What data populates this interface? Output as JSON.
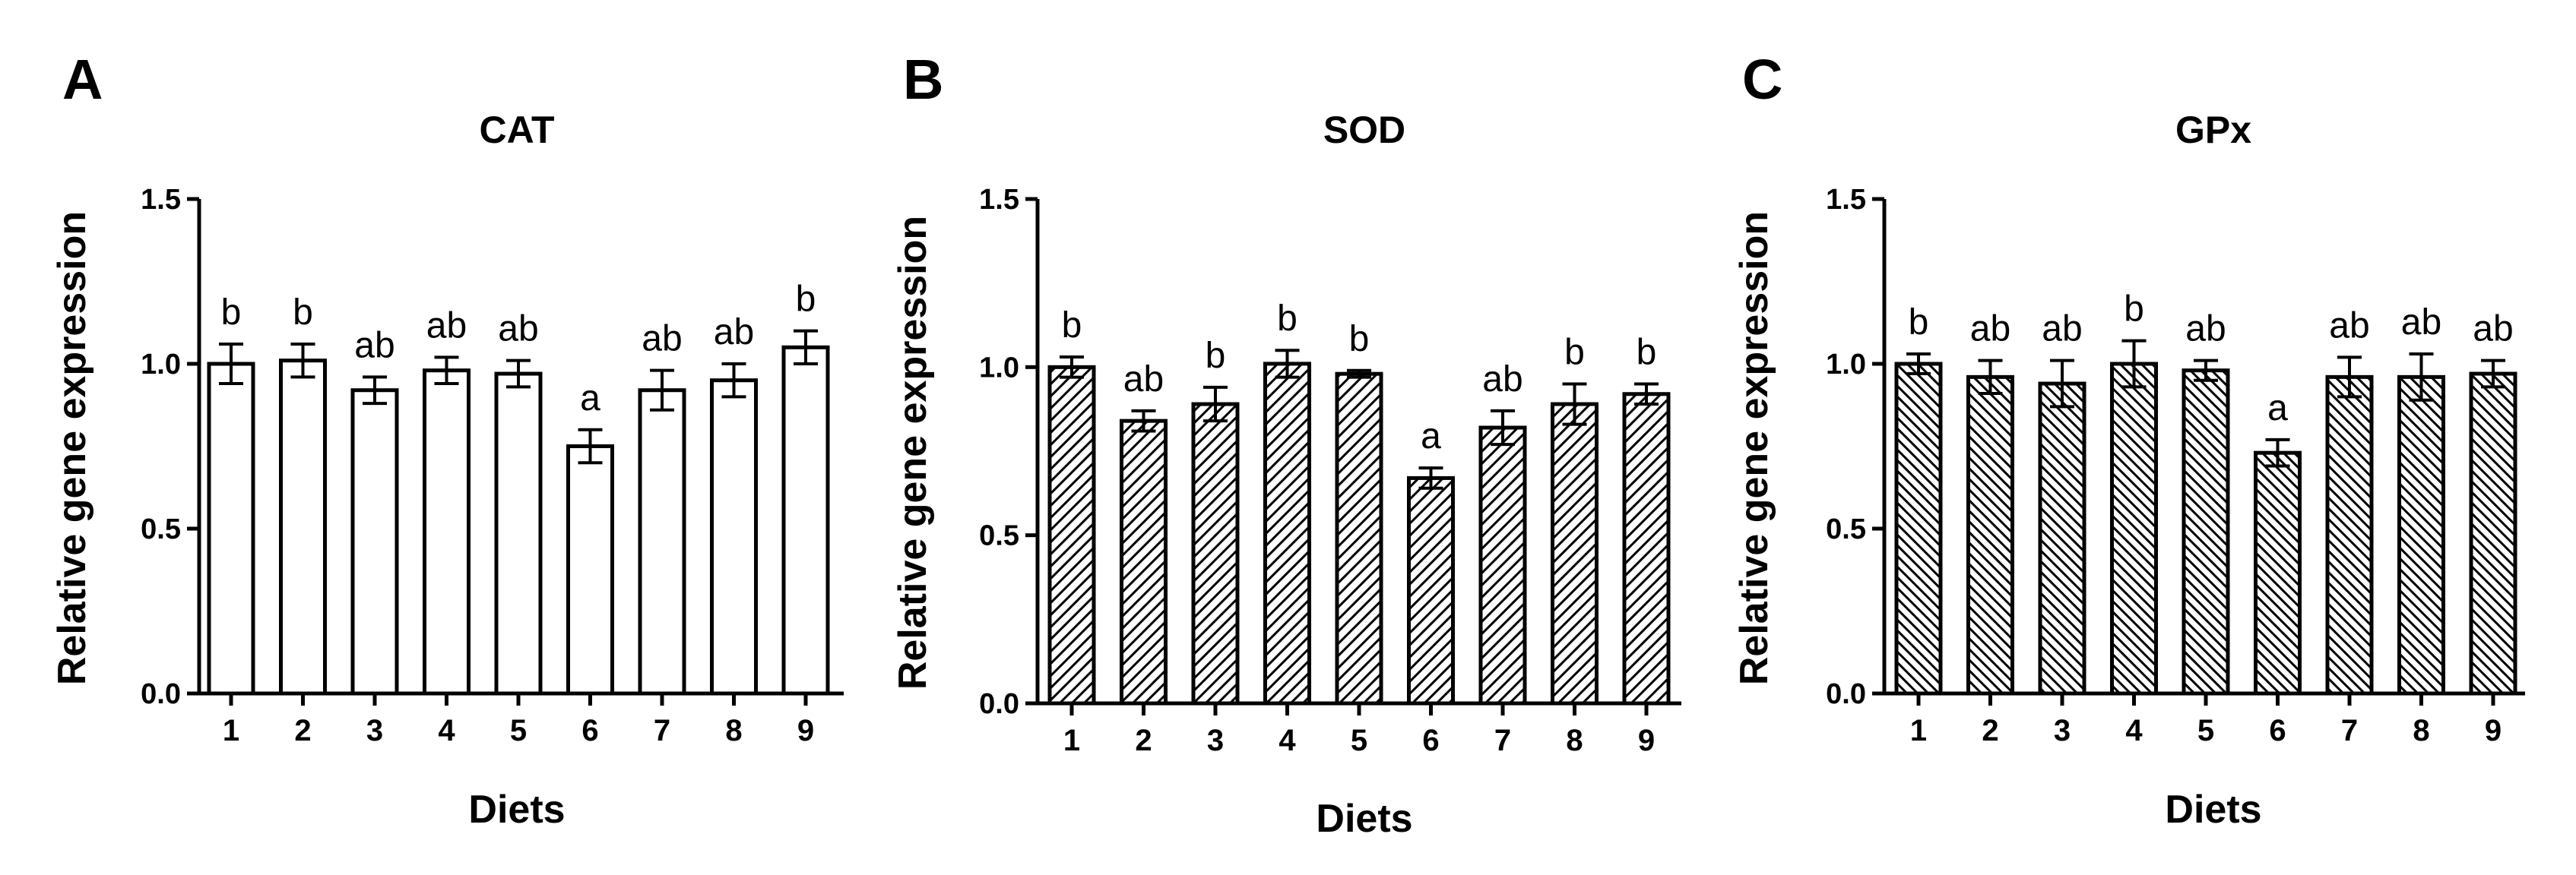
{
  "colors": {
    "ink": "#000000",
    "bar_fill": "#ffffff"
  },
  "chart_data": [
    {
      "type": "bar",
      "panel_label": "A",
      "title": "CAT",
      "xlabel": "Diets",
      "ylabel": "Relative gene expression",
      "ylim": [
        0,
        1.5
      ],
      "yticks": [
        "0.0",
        "0.5",
        "1.0",
        "1.5"
      ],
      "categories": [
        "1",
        "2",
        "3",
        "4",
        "5",
        "6",
        "7",
        "8",
        "9"
      ],
      "values": [
        1.0,
        1.01,
        0.92,
        0.98,
        0.97,
        0.75,
        0.92,
        0.95,
        1.05
      ],
      "errors": [
        0.06,
        0.05,
        0.04,
        0.04,
        0.04,
        0.05,
        0.06,
        0.05,
        0.05
      ],
      "significance_labels": [
        "b",
        "b",
        "ab",
        "ab",
        "ab",
        "a",
        "ab",
        "ab",
        "b"
      ],
      "bar_pattern": "open",
      "grid": false,
      "legend": "none"
    },
    {
      "type": "bar",
      "panel_label": "B",
      "title": "SOD",
      "xlabel": "Diets",
      "ylabel": "Relative gene expression",
      "ylim": [
        0,
        1.5
      ],
      "yticks": [
        "0.0",
        "0.5",
        "1.0",
        "1.5"
      ],
      "categories": [
        "1",
        "2",
        "3",
        "4",
        "5",
        "6",
        "7",
        "8",
        "9"
      ],
      "values": [
        1.0,
        0.84,
        0.89,
        1.01,
        0.98,
        0.67,
        0.82,
        0.89,
        0.92
      ],
      "errors": [
        0.03,
        0.03,
        0.05,
        0.04,
        0.01,
        0.03,
        0.05,
        0.06,
        0.03
      ],
      "significance_labels": [
        "b",
        "ab",
        "b",
        "b",
        "b",
        "a",
        "ab",
        "b",
        "b"
      ],
      "bar_pattern": "hatch-forward",
      "grid": false,
      "legend": "none"
    },
    {
      "type": "bar",
      "panel_label": "C",
      "title": "GPx",
      "xlabel": "Diets",
      "ylabel": "Relative gene expression",
      "ylim": [
        0,
        1.5
      ],
      "yticks": [
        "0.0",
        "0.5",
        "1.0",
        "1.5"
      ],
      "categories": [
        "1",
        "2",
        "3",
        "4",
        "5",
        "6",
        "7",
        "8",
        "9"
      ],
      "values": [
        1.0,
        0.96,
        0.94,
        1.0,
        0.98,
        0.73,
        0.96,
        0.96,
        0.97
      ],
      "errors": [
        0.03,
        0.05,
        0.07,
        0.07,
        0.03,
        0.04,
        0.06,
        0.07,
        0.04
      ],
      "significance_labels": [
        "b",
        "ab",
        "ab",
        "b",
        "ab",
        "a",
        "ab",
        "ab",
        "ab"
      ],
      "bar_pattern": "hatch-back",
      "grid": false,
      "legend": "none"
    }
  ]
}
